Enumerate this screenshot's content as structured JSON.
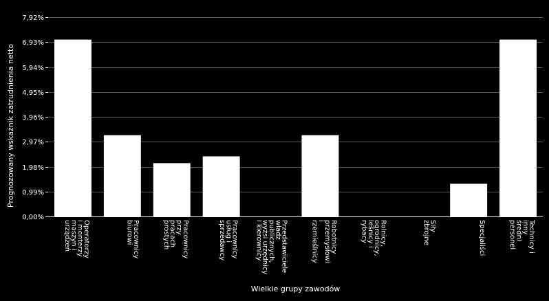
{
  "chart_data": {
    "type": "bar",
    "title": "",
    "xlabel": "Wielkie grupy zawodów",
    "ylabel": "Prognozowany wskaźnik zatrudnienia netto",
    "ylim": [
      0,
      7.92
    ],
    "yticks": [
      "0,00%",
      "0,99%",
      "1,98%",
      "2,97%",
      "3,96%",
      "4,95%",
      "5,94%",
      "6,93%",
      "7,92%"
    ],
    "grid": true,
    "categories": [
      [
        "Operatorzy",
        "i monterzy",
        "maszyn i",
        "urządzeń"
      ],
      [
        "Pracownicy",
        "biurowi"
      ],
      [
        "Pracownicy",
        "przy",
        "pracach",
        "prostych"
      ],
      [
        "Pracownicy",
        "usług i",
        "sprzedawcy"
      ],
      [
        "Przedstawiciele",
        "władz",
        "publicznych,",
        "wyżsi urzędnicy",
        "i kierownicy"
      ],
      [
        "Robotnicy",
        "przemysłowi",
        "i",
        "rzemieślnicy"
      ],
      [
        "Rolnicy,",
        "ogrodnicy,",
        "leśnicy i",
        "rybacy"
      ],
      [
        "Siły",
        "zbrojne"
      ],
      [
        "Specjaliści"
      ],
      [
        "Technicy i",
        "inny",
        "średni",
        "personel"
      ]
    ],
    "values": [
      7.03,
      3.23,
      2.12,
      2.39,
      0,
      3.23,
      0,
      0,
      1.3,
      7.03
    ],
    "colors": {
      "background": "#000000",
      "bar": "#ffffff",
      "grid": "#5a5a5a",
      "text": "#ffffff"
    }
  }
}
